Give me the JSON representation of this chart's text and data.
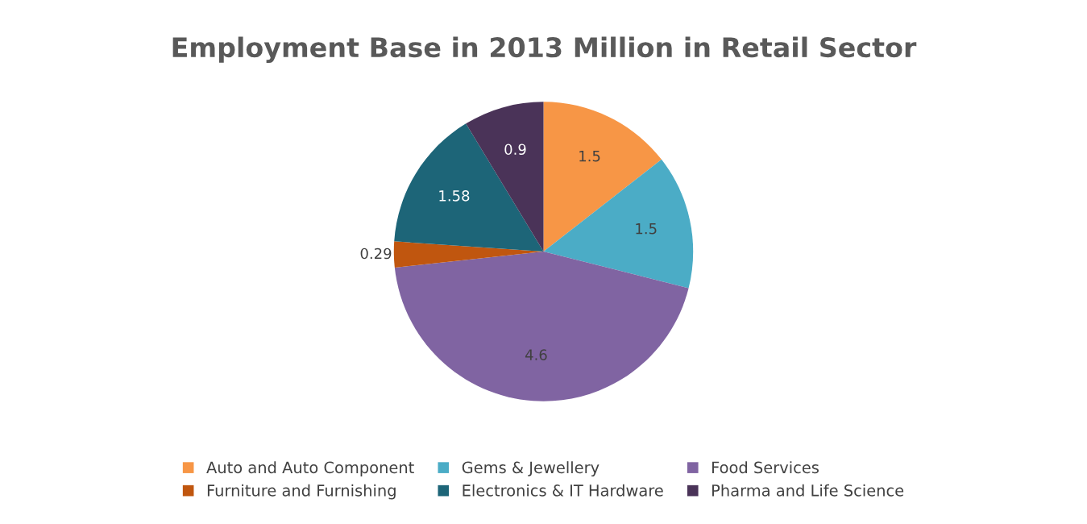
{
  "chart_data": {
    "type": "pie",
    "title": "Employment Base in 2013 Million in Retail Sector",
    "categories": [
      "Auto and Auto Component",
      "Gems & Jewellery",
      "Food Services",
      "Furniture and Furnishing",
      "Electronics & IT Hardware",
      "Pharma and Life Science"
    ],
    "values": [
      1.5,
      1.5,
      4.6,
      0.29,
      1.58,
      0.9
    ],
    "colors": [
      "#f79646",
      "#4bacc6",
      "#8064a2",
      "#c0560f",
      "#1d6578",
      "#4a3358"
    ],
    "data_labels": true,
    "legend": "bottom"
  }
}
